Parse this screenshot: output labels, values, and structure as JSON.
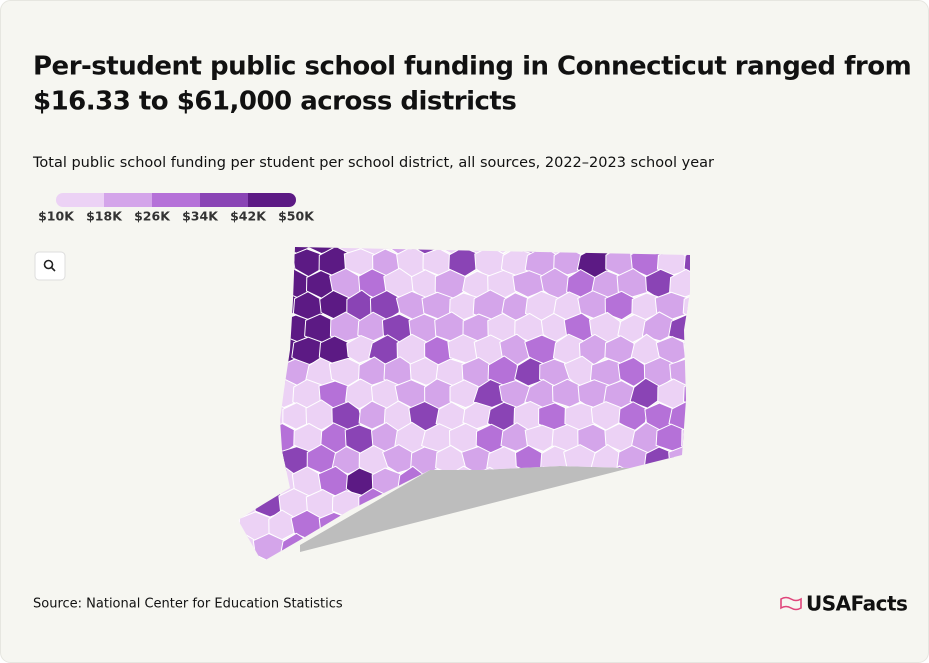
{
  "header": {
    "title": [
      "Per-student public school funding in Connecticut ranged from",
      "$16.33 to $61,000 across districts"
    ],
    "subtitle": "Total public school funding per student per school district, all sources, 2022–2023 school year"
  },
  "legend": {
    "colors": [
      "#ecd2f5",
      "#d4a5ea",
      "#b571d8",
      "#8a44b5",
      "#5c1a84"
    ],
    "labels": [
      "$10K",
      "$18K",
      "$26K",
      "$34K",
      "$42K",
      "$50K"
    ]
  },
  "footer": {
    "source": "Source: National Center for Education Statistics",
    "logo": "USAFacts"
  }
}
